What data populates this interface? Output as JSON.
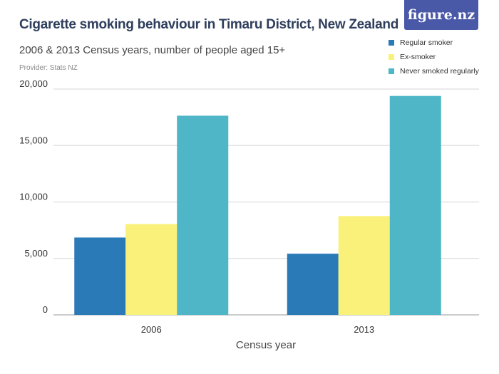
{
  "header": {
    "title": "Cigarette smoking behaviour in Timaru District, New Zealand",
    "subtitle": "2006 & 2013 Census years, number of people aged 15+",
    "provider": "Provider: Stats NZ",
    "logo": "figure.nz"
  },
  "chart_data": {
    "type": "bar",
    "title": "Cigarette smoking behaviour in Timaru District, New Zealand",
    "subtitle": "2006 & 2013 Census years, number of people aged 15+",
    "xlabel": "Census year",
    "ylabel": "",
    "categories": [
      "2006",
      "2013"
    ],
    "ylim": [
      0,
      20000
    ],
    "yticks": [
      0,
      5000,
      10000,
      15000,
      20000
    ],
    "ytick_labels": [
      "0",
      "5,000",
      "10,000",
      "15,000",
      "20,000"
    ],
    "grid": true,
    "legend_placement": "top-right",
    "series": [
      {
        "name": "Regular smoker",
        "color": "#2a7ab8",
        "values": [
          6850,
          5420
        ]
      },
      {
        "name": "Ex-smoker",
        "color": "#f9f17a",
        "values": [
          8040,
          8750
        ]
      },
      {
        "name": "Never smoked regularly",
        "color": "#4eb6c6",
        "values": [
          17640,
          19390
        ]
      }
    ]
  }
}
